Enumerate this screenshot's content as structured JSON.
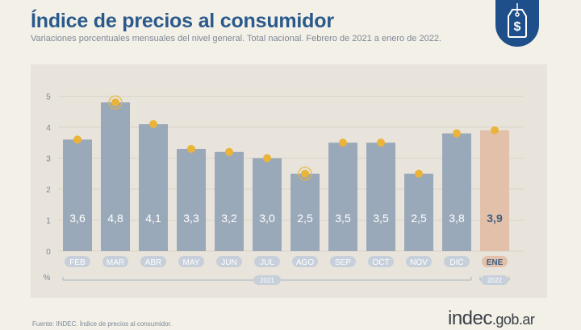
{
  "header": {
    "title": "Índice de precios al consumidor",
    "subtitle": "Variaciones porcentuales mensuales del nivel general. Total nacional. Febrero de 2021 a enero de 2022.",
    "badge_icon": "price-tag-dollar-icon"
  },
  "chart_data": {
    "type": "bar",
    "categories": [
      "FEB",
      "MAR",
      "ABR",
      "MAY",
      "JUN",
      "JUL",
      "AGO",
      "SEP",
      "OCT",
      "NOV",
      "DIC",
      "ENE"
    ],
    "values": [
      3.6,
      4.8,
      4.1,
      3.3,
      3.2,
      3.0,
      2.5,
      3.5,
      3.5,
      2.5,
      3.8,
      3.9
    ],
    "value_labels": [
      "3,6",
      "4,8",
      "4,1",
      "3,3",
      "3,2",
      "3,0",
      "2,5",
      "3,5",
      "3,5",
      "2,5",
      "3,8",
      "3,9"
    ],
    "highlighted_markers": [
      "MAR",
      "AGO"
    ],
    "y_ticks": [
      "0",
      "1",
      "2",
      "3",
      "4",
      "5"
    ],
    "ylim": [
      0,
      5
    ],
    "y_unit": "%",
    "year_groups": [
      {
        "label": "2021",
        "from": "FEB",
        "to": "DIC"
      },
      {
        "label": "2022",
        "from": "ENE",
        "to": "ENE"
      }
    ],
    "colors": {
      "bar": "#9aa9b9",
      "bar_current": "#e3c0aa",
      "marker": "#eab43a",
      "grid": "#d9d4c9",
      "label": "#ffffff",
      "label_current": "#3f5f82"
    }
  },
  "footer": {
    "source": "Fuente: INDEC. Índice de precios al consumidor.",
    "brand": "indec",
    "brand_domain": ".gob.ar"
  }
}
